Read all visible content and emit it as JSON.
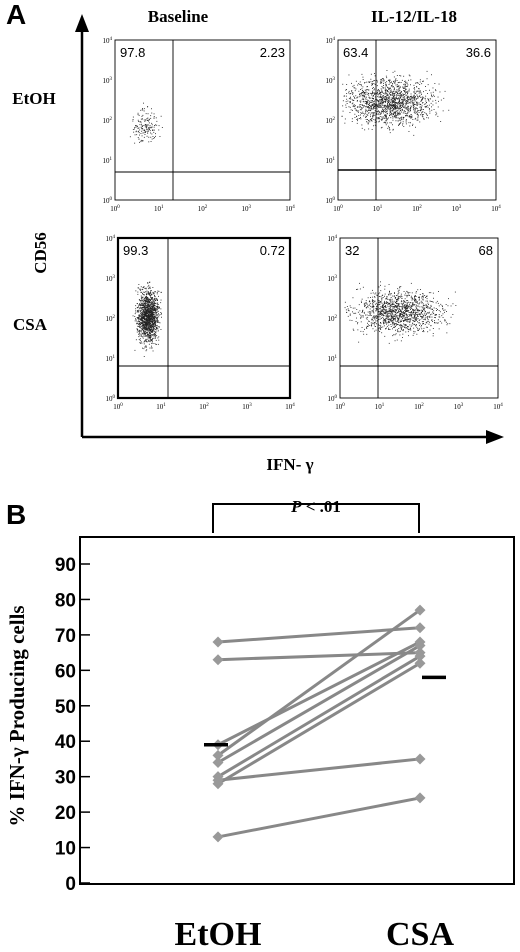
{
  "panel_a": {
    "letter": "A",
    "col_headers": [
      "Baseline",
      "IL-12/IL-18"
    ],
    "row_headers": [
      "EtOH",
      "CSA"
    ],
    "y_axis_label": "CD56",
    "x_axis_label": "IFN- γ",
    "axis_ticks": {
      "x": [
        "10^0",
        "10^1",
        "10^2",
        "10^3",
        "10^4"
      ],
      "y": [
        "10^0",
        "10^1",
        "10^2",
        "10^3",
        "10^4"
      ]
    },
    "plots": [
      {
        "id": "etoh-baseline",
        "q_left": "97.8",
        "q_right": "2.23"
      },
      {
        "id": "etoh-il",
        "q_left": "63.4",
        "q_right": "36.6"
      },
      {
        "id": "csa-baseline",
        "q_left": "99.3",
        "q_right": "0.72"
      },
      {
        "id": "csa-il",
        "q_left": "32",
        "q_right": "68"
      }
    ]
  },
  "chart_data": {
    "type": "line",
    "panel_letter": "B",
    "ylabel": "% IFN-γ Producing cells",
    "xlabel": "",
    "categories": [
      "EtOH",
      "CSA"
    ],
    "ylim": [
      0,
      90
    ],
    "yticks": [
      0,
      10,
      20,
      30,
      40,
      50,
      60,
      70,
      80,
      90
    ],
    "annotation": "P < .01",
    "series": [
      {
        "values": [
          68,
          72
        ]
      },
      {
        "values": [
          63,
          65
        ]
      },
      {
        "values": [
          39,
          68
        ]
      },
      {
        "values": [
          36,
          77
        ]
      },
      {
        "values": [
          34,
          67
        ]
      },
      {
        "values": [
          30,
          64
        ]
      },
      {
        "values": [
          28,
          62
        ]
      },
      {
        "values": [
          29,
          35
        ]
      },
      {
        "values": [
          13,
          24
        ]
      }
    ],
    "means": [
      39,
      58
    ],
    "colors": {
      "line": "#888888",
      "marker": "#999999",
      "mean": "#000000"
    }
  }
}
